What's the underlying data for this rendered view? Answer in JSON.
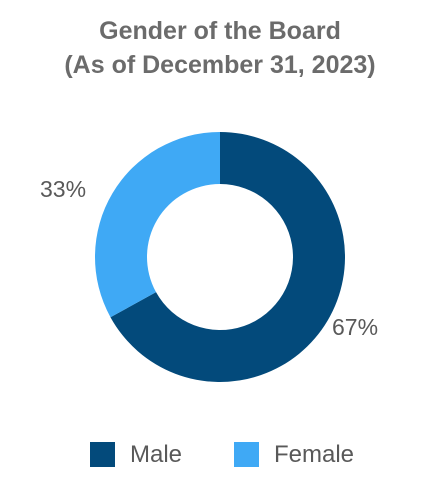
{
  "chart_data": {
    "type": "pie",
    "variant": "donut",
    "title": "Gender of the Board",
    "subtitle": "(As of December 31, 2023)",
    "categories": [
      "Male",
      "Female"
    ],
    "values": [
      67,
      33
    ],
    "value_labels": [
      "67%",
      "33%"
    ],
    "colors": [
      "#034a7b",
      "#3fa9f5"
    ],
    "legend_position": "bottom",
    "start_angle_deg": 0,
    "direction": "clockwise"
  }
}
